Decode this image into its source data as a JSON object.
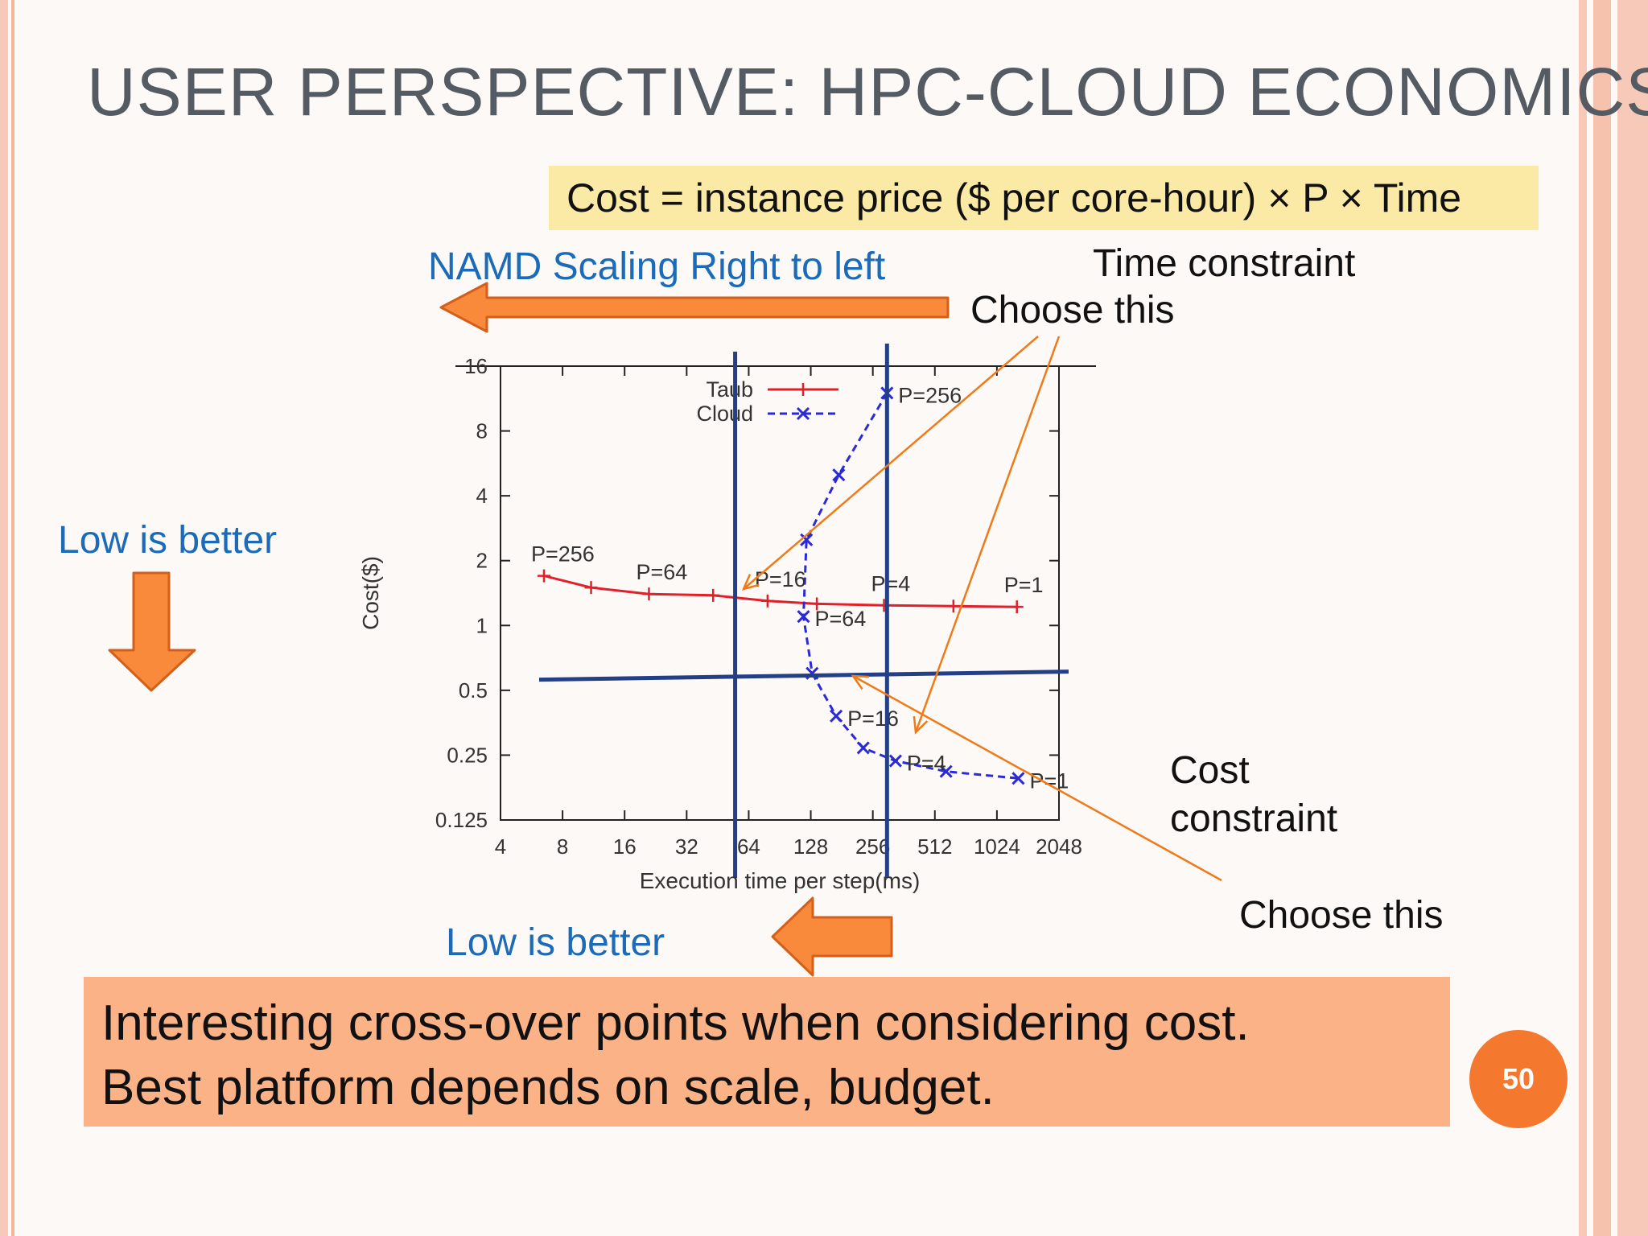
{
  "slide": {
    "title": "USER PERSPECTIVE: HPC-CLOUD ECONOMICS",
    "formula": "Cost = instance price ($ per core-hour) × P × Time",
    "namd_label": "NAMD Scaling Right to left",
    "time_constraint_label": "Time constraint",
    "choose_this_top": "Choose this",
    "low_is_better_left": "Low is better",
    "low_is_better_bottom": "Low is better",
    "cost_constraint_line1": "Cost",
    "cost_constraint_line2": "constraint",
    "choose_this_bottom": "Choose this",
    "summary_line1": "Interesting cross-over points when considering cost.",
    "summary_line2": "Best platform depends on scale, budget.",
    "page_number": "50",
    "colors": {
      "arrow_fill": "#f98a3c",
      "arrow_stroke": "#d2601a",
      "constraint_line": "#233f86",
      "pointer_line": "#f07a18"
    }
  },
  "chart_data": {
    "type": "line",
    "xlabel": "Execution time per step(ms)",
    "ylabel": "Cost($)",
    "x_scale": "log2",
    "y_scale": "log2",
    "xlim": [
      4,
      2048
    ],
    "ylim": [
      0.125,
      16
    ],
    "x_ticks": [
      4,
      8,
      16,
      32,
      64,
      128,
      256,
      512,
      1024,
      2048
    ],
    "y_ticks": [
      0.125,
      0.25,
      0.5,
      1,
      2,
      4,
      8,
      16
    ],
    "x_tick_labels": [
      "4",
      "8",
      "16",
      "32",
      "64",
      "128",
      "256",
      "512",
      "1024",
      "2048"
    ],
    "y_tick_labels": [
      "0.125",
      "0.25",
      "0.5",
      "1",
      "2",
      "4",
      "8",
      "16"
    ],
    "legend_position": "top-center",
    "series": [
      {
        "name": "Taub",
        "color": "#e0202a",
        "marker": "plus",
        "dash": "solid",
        "x": [
          6.5,
          11,
          21,
          43,
          79,
          137,
          290,
          630,
          1280
        ],
        "y": [
          1.7,
          1.5,
          1.4,
          1.38,
          1.3,
          1.26,
          1.24,
          1.23,
          1.22
        ],
        "labels": [
          {
            "i": 0,
            "text": "P=256"
          },
          {
            "i": 2,
            "text": "P=64"
          },
          {
            "i": 4,
            "text": "P=16"
          },
          {
            "i": 6,
            "text": "P=4"
          },
          {
            "i": 8,
            "text": "P=1"
          }
        ]
      },
      {
        "name": "Cloud",
        "color": "#2a2ad8",
        "marker": "x",
        "dash": "dashed",
        "x": [
          300,
          175,
          122,
          118,
          130,
          170,
          230,
          330,
          580,
          1300
        ],
        "y": [
          12,
          5,
          2.5,
          1.1,
          0.6,
          0.38,
          0.27,
          0.235,
          0.21,
          0.195
        ],
        "labels": [
          {
            "i": 0,
            "text": "P=256"
          },
          {
            "i": 3,
            "text": "P=64"
          },
          {
            "i": 5,
            "text": "P=16"
          },
          {
            "i": 7,
            "text": "P=4"
          },
          {
            "i": 9,
            "text": "P=1"
          }
        ]
      }
    ],
    "constraint_lines": {
      "vertical_x": [
        55,
        300
      ],
      "horizontal_y": 0.58
    }
  }
}
